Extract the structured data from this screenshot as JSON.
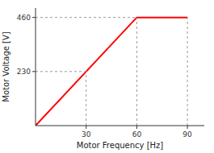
{
  "chart_data": {
    "type": "line",
    "xlabel": "Motor Frequency [Hz]",
    "ylabel": "Motor Voltage [V]",
    "xlim": [
      0,
      100
    ],
    "ylim": [
      0,
      500
    ],
    "xticks": [
      30,
      60,
      90
    ],
    "yticks": [
      230,
      460
    ],
    "grid": false,
    "series": [
      {
        "x": [
          0,
          60,
          90
        ],
        "values": [
          0,
          460,
          460
        ],
        "color": "#ff0000",
        "line_style": "solid"
      },
      {
        "x": [
          0,
          30
        ],
        "values": [
          230,
          230
        ],
        "color": "#999999",
        "line_style": "dashed"
      },
      {
        "x": [
          30,
          30
        ],
        "values": [
          0,
          230
        ],
        "color": "#999999",
        "line_style": "dashed"
      },
      {
        "x": [
          0,
          60
        ],
        "values": [
          460,
          460
        ],
        "color": "#999999",
        "line_style": "dashed"
      },
      {
        "x": [
          60,
          60
        ],
        "values": [
          0,
          460
        ],
        "color": "#999999",
        "line_style": "dashed"
      },
      {
        "x": [
          90,
          90
        ],
        "values": [
          0,
          460
        ],
        "color": "#999999",
        "line_style": "dashed"
      }
    ]
  }
}
